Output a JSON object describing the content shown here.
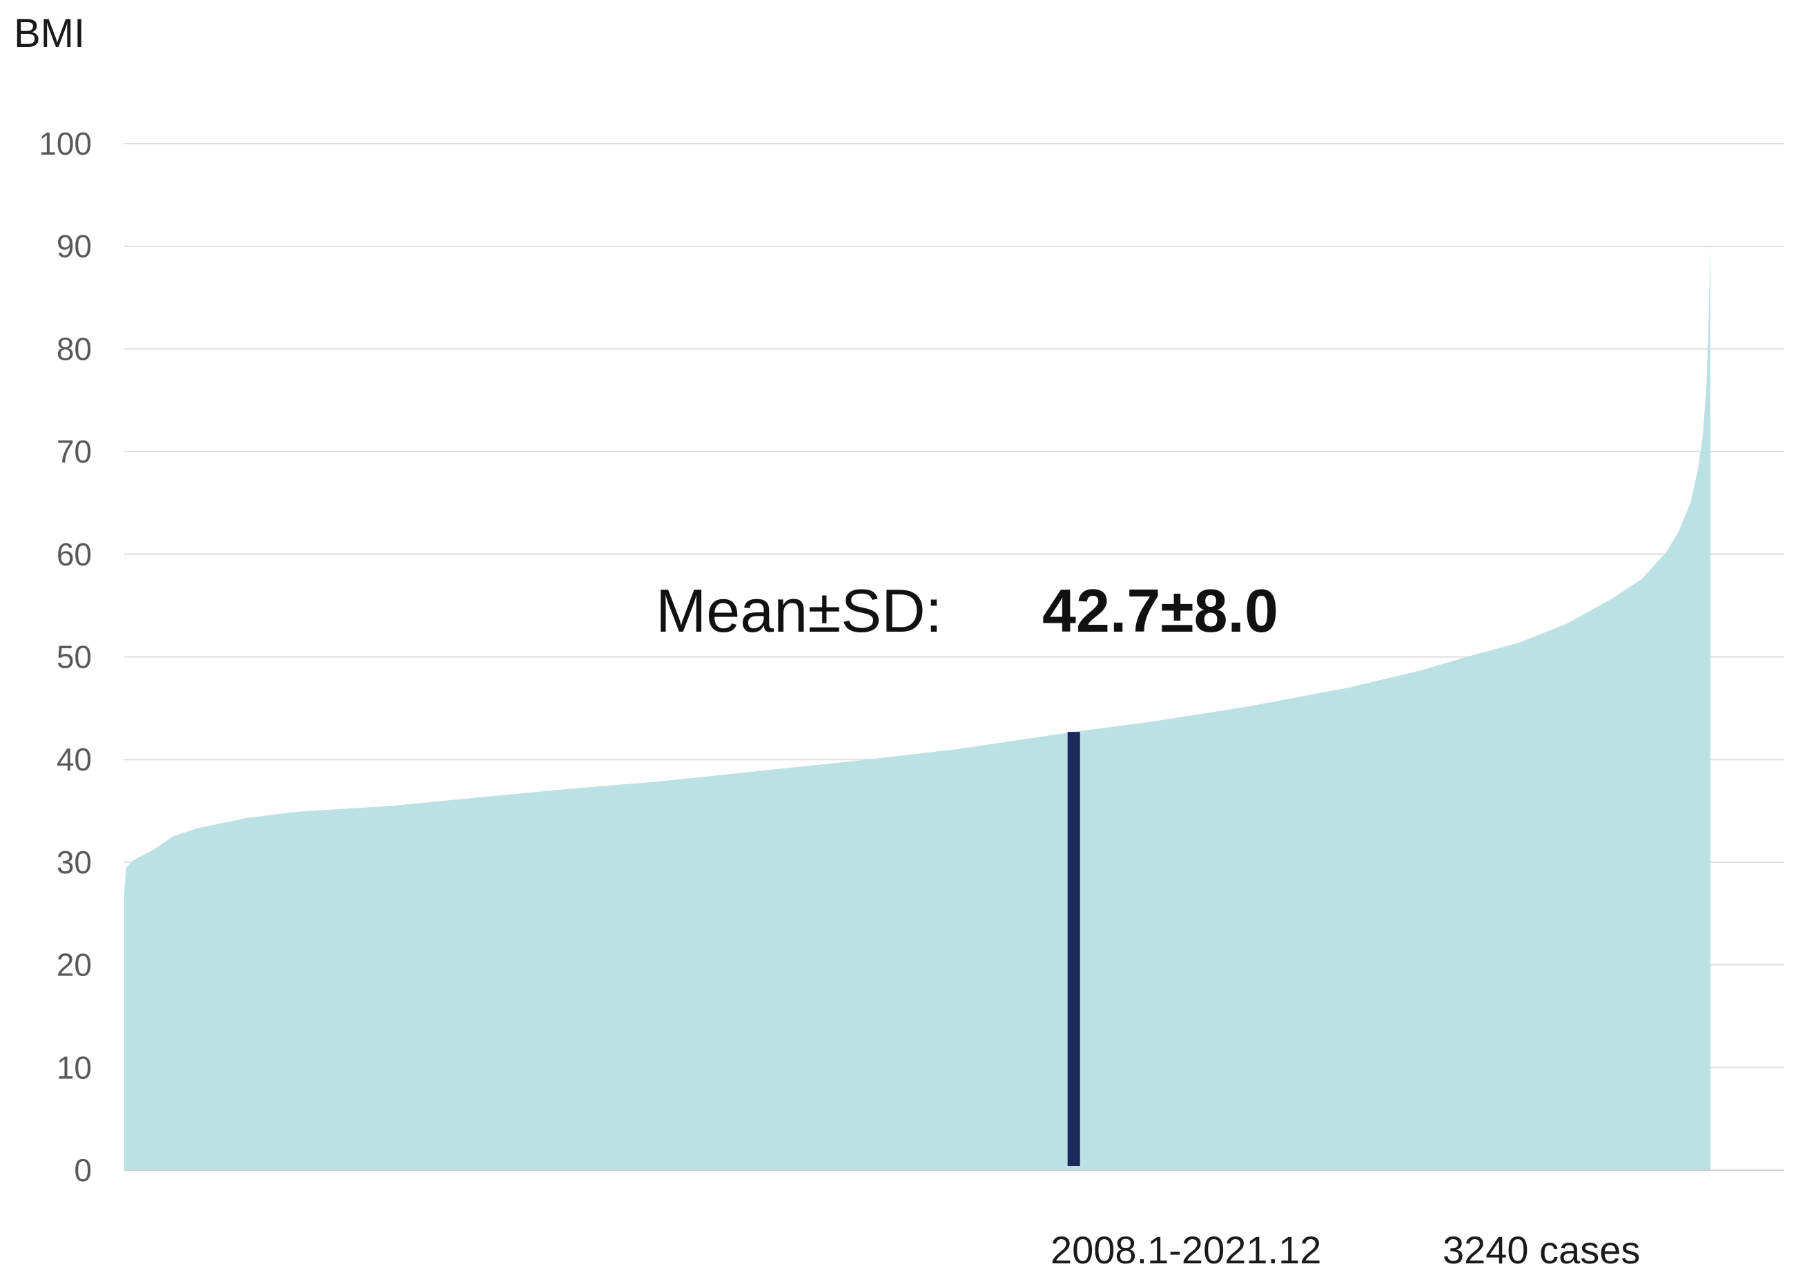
{
  "chart_data": {
    "type": "area",
    "ylabel": "BMI",
    "ylim": [
      0,
      100
    ],
    "yticks": [
      0,
      10,
      20,
      30,
      40,
      50,
      60,
      70,
      80,
      90,
      100
    ],
    "grid": true,
    "x_range": [
      1,
      3240
    ],
    "series": [
      {
        "color": "#bce1e4",
        "x": [
          1,
          5,
          20,
          60,
          100,
          150,
          250,
          350,
          450,
          550,
          700,
          900,
          1100,
          1300,
          1500,
          1700,
          1940,
          2100,
          2300,
          2500,
          2650,
          2750,
          2850,
          2950,
          3040,
          3100,
          3150,
          3175,
          3200,
          3215,
          3225,
          3232,
          3236,
          3240
        ],
        "values": [
          27,
          29.5,
          30.2,
          31.2,
          32.5,
          33.3,
          34.3,
          34.9,
          35.2,
          35.5,
          36.2,
          37.1,
          37.9,
          38.9,
          39.9,
          41.0,
          42.7,
          43.7,
          45.2,
          47.0,
          48.7,
          50.1,
          51.4,
          53.3,
          55.7,
          57.6,
          60.2,
          62.2,
          65.1,
          68.4,
          71.9,
          76.5,
          82.0,
          90.5
        ]
      }
    ],
    "marker": {
      "x": 1940,
      "value": 42.7,
      "color": "#1b2a5c"
    },
    "annotation": {
      "label": "Mean±SD:",
      "value": "42.7±8.0"
    },
    "footer": {
      "period": "2008.1-2021.12",
      "cases": "3240 cases"
    }
  }
}
